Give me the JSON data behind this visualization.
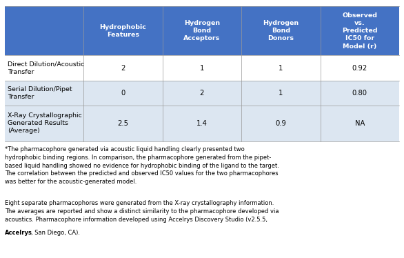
{
  "header_bg": "#4472C4",
  "header_text_color": "#FFFFFF",
  "row_bg_odd": "#FFFFFF",
  "row_bg_even": "#DCE6F1",
  "text_color": "#000000",
  "col_headers": [
    "Hydrophobic\nFeatures",
    "Hydrogen\nBond\nAcceptors",
    "Hydrogen\nBond\nDonors",
    "Observed\nvs.\nPredicted\nIC50 for\nModel (r)"
  ],
  "row_labels": [
    "Direct Dilution/Acoustic\nTransfer",
    "Serial Dilution/Pipet\nTransfer",
    "X-Ray Crystallographic\nGenerated Results\n(Average)"
  ],
  "table_data": [
    [
      "2",
      "1",
      "1",
      "0.92"
    ],
    [
      "0",
      "2",
      "1",
      "0.80"
    ],
    [
      "2.5",
      "1.4",
      "0.9",
      "NA"
    ]
  ],
  "footnote1_lines": [
    "*The pharmacophore generated via acoustic liquid handling clearly presented two",
    "hydrophobic binding regions. In comparison, the pharmacophore generated from the pipet-",
    "based liquid handling showed no evidence for hydrophobic binding of the ligand to the target.",
    "The correlation between the predicted and observed IC50 values for the two pharmacophores",
    "was better for the acoustic-generated model."
  ],
  "footnote2_lines": [
    "Eight separate pharmacophores were generated from the X-ray crystallography information.",
    "The averages are reported and show a distinct similarity to the pharmacophore developed via",
    "acoustics. Pharmacophore information developed using Accelrys Discovery Studio (v2.5.5,"
  ],
  "footnote2_bold": "Accelrys",
  "footnote2_end": ", San Diego, CA).",
  "figsize": [
    5.86,
    3.74
  ],
  "dpi": 100
}
